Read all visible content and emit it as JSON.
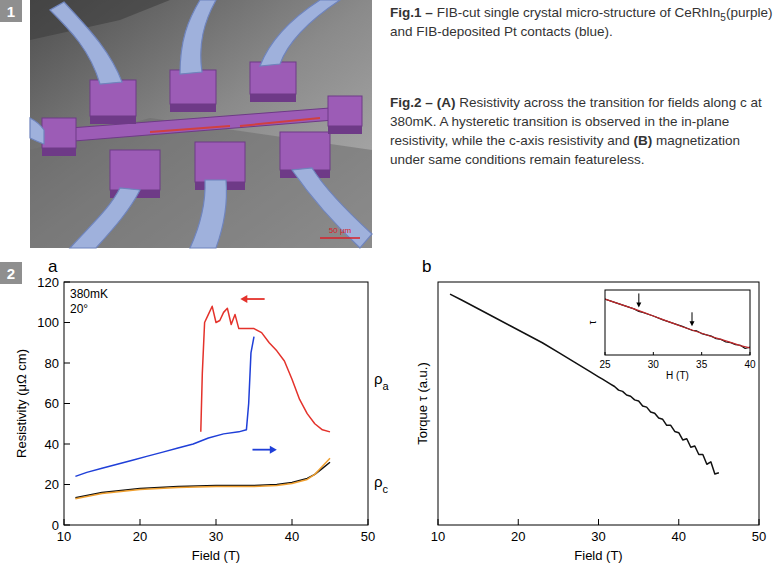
{
  "section_numbers": [
    "1",
    "2"
  ],
  "figure1": {
    "scale_label": "50 µm"
  },
  "captions": [
    {
      "label": "Fig.1 –",
      "parts": [
        {
          "text": "FIB-cut single crystal micro-structure of CeRhIn"
        },
        {
          "text": "5",
          "sub": true
        },
        {
          "text": "(purple) and FIB-deposited Pt contacts (blue)."
        }
      ]
    },
    {
      "label": "Fig.2 –",
      "parts": [
        {
          "text": "(A)",
          "bold": true
        },
        {
          "text": " Resistivity across the transition for fields along c at 380mK. A hysteretic transition is observed in the in-plane resistivity, while the c-axis resistivity and "
        },
        {
          "text": "(B)",
          "bold": true
        },
        {
          "text": " magnetization under same conditions remain featureless."
        }
      ]
    }
  ],
  "chart_data": [
    {
      "type": "line",
      "panel_label": "a",
      "x_label": "Field (T)",
      "y_label": "Resistivity (μΩ cm)",
      "xlim": [
        10,
        50
      ],
      "xticks": [
        10,
        20,
        30,
        40,
        50
      ],
      "ylim": [
        0,
        120
      ],
      "yticks": [
        0,
        20,
        40,
        60,
        80,
        100,
        120
      ],
      "annotations": [
        "380mK",
        "20°"
      ],
      "series": [
        {
          "name": "ρa",
          "color": "#e4322b",
          "x": [
            28,
            28.2,
            28.5,
            29,
            29.5,
            30,
            30.5,
            31,
            31.5,
            32,
            32.5,
            33,
            34,
            35,
            36,
            37,
            38,
            39,
            40,
            41,
            42,
            43,
            44,
            45
          ],
          "values": [
            46,
            75,
            100,
            104,
            108,
            100,
            101,
            105,
            107,
            99,
            104,
            97,
            97,
            97,
            95,
            90,
            86,
            81,
            72,
            62,
            55,
            50,
            47,
            46
          ]
        },
        {
          "color": "#1f3fd8",
          "x": [
            11.5,
            13,
            15,
            17,
            19,
            21,
            23,
            25,
            27,
            29,
            31,
            33,
            34,
            34.3,
            34.6,
            35
          ],
          "values": [
            24,
            26,
            28,
            30,
            32,
            34,
            36,
            38,
            40,
            43,
            45,
            46,
            47,
            60,
            85,
            93
          ]
        },
        {
          "name": "ρc",
          "color": "#111111",
          "x": [
            11.5,
            15,
            20,
            25,
            30,
            35,
            38,
            40,
            42,
            43,
            44,
            45
          ],
          "values": [
            13.5,
            16,
            18,
            19,
            19.5,
            19.5,
            20,
            21,
            23,
            25,
            28,
            31
          ]
        },
        {
          "color": "#f0a030",
          "x": [
            11.5,
            15,
            20,
            25,
            30,
            35,
            38,
            40,
            42,
            43,
            44,
            45
          ],
          "values": [
            13,
            15.5,
            17.5,
            18.5,
            19,
            19,
            19.5,
            20.5,
            22.5,
            25,
            29,
            33
          ]
        }
      ]
    },
    {
      "type": "line",
      "panel_label": "b",
      "x_label": "Field (T)",
      "y_label": "Torque τ (a.u.)",
      "xlim": [
        10,
        50
      ],
      "xticks": [
        10,
        20,
        30,
        40,
        50
      ],
      "ylim": [
        0,
        100
      ],
      "tick_labels": "x",
      "series": [
        {
          "color": "#111111",
          "x": [
            11.5,
            13,
            15,
            17,
            19,
            21,
            23,
            25,
            27,
            29,
            30,
            30.5,
            31,
            31.5,
            32,
            32.5,
            33,
            33.5,
            34,
            34.5,
            35,
            35.5,
            36,
            36.5,
            37,
            37.5,
            38,
            38.5,
            39,
            39.5,
            40,
            40.5,
            41,
            41.5,
            42,
            42.5,
            43,
            43.5,
            44,
            44.5,
            45
          ],
          "values": [
            95,
            92.5,
            89,
            85.5,
            82,
            78.5,
            75,
            71,
            67,
            63,
            61,
            60,
            59,
            58,
            57,
            55.5,
            55,
            53.5,
            53,
            51.5,
            51,
            49,
            48.5,
            46.5,
            46,
            44,
            43.5,
            41,
            41,
            38.5,
            38,
            35,
            35.5,
            32,
            32.5,
            29,
            29,
            25,
            26,
            21,
            21.5
          ]
        }
      ]
    },
    {
      "type": "line",
      "x_label": "H (T)",
      "y_label": "τ",
      "xlim": [
        25,
        40
      ],
      "xticks": [
        25,
        30,
        35,
        40
      ],
      "ylim": [
        0,
        10
      ],
      "tick_labels": "x",
      "arrows_x": [
        28.5,
        34
      ],
      "series": [
        {
          "color": "#111111",
          "x": [
            25,
            26,
            27,
            28,
            28.5,
            29,
            30,
            31,
            32,
            33,
            34,
            34.5,
            35,
            36,
            36.5,
            37,
            37.5,
            38,
            38.5,
            39,
            39.5,
            40
          ],
          "values": [
            8.6,
            8.1,
            7.6,
            7.1,
            6.7,
            6.5,
            6.0,
            5.4,
            4.9,
            4.4,
            3.8,
            3.7,
            3.3,
            2.9,
            2.5,
            2.4,
            2.0,
            1.9,
            1.6,
            1.5,
            1.0,
            1.2
          ]
        },
        {
          "color": "#c0282b",
          "x": [
            25,
            26,
            27,
            28,
            29,
            30,
            31,
            32,
            33,
            34,
            35,
            36,
            37,
            38,
            39,
            40
          ],
          "values": [
            8.6,
            8.1,
            7.6,
            7.1,
            6.55,
            6.0,
            5.45,
            4.9,
            4.35,
            3.85,
            3.35,
            2.85,
            2.4,
            1.95,
            1.45,
            1.1
          ]
        }
      ]
    }
  ]
}
